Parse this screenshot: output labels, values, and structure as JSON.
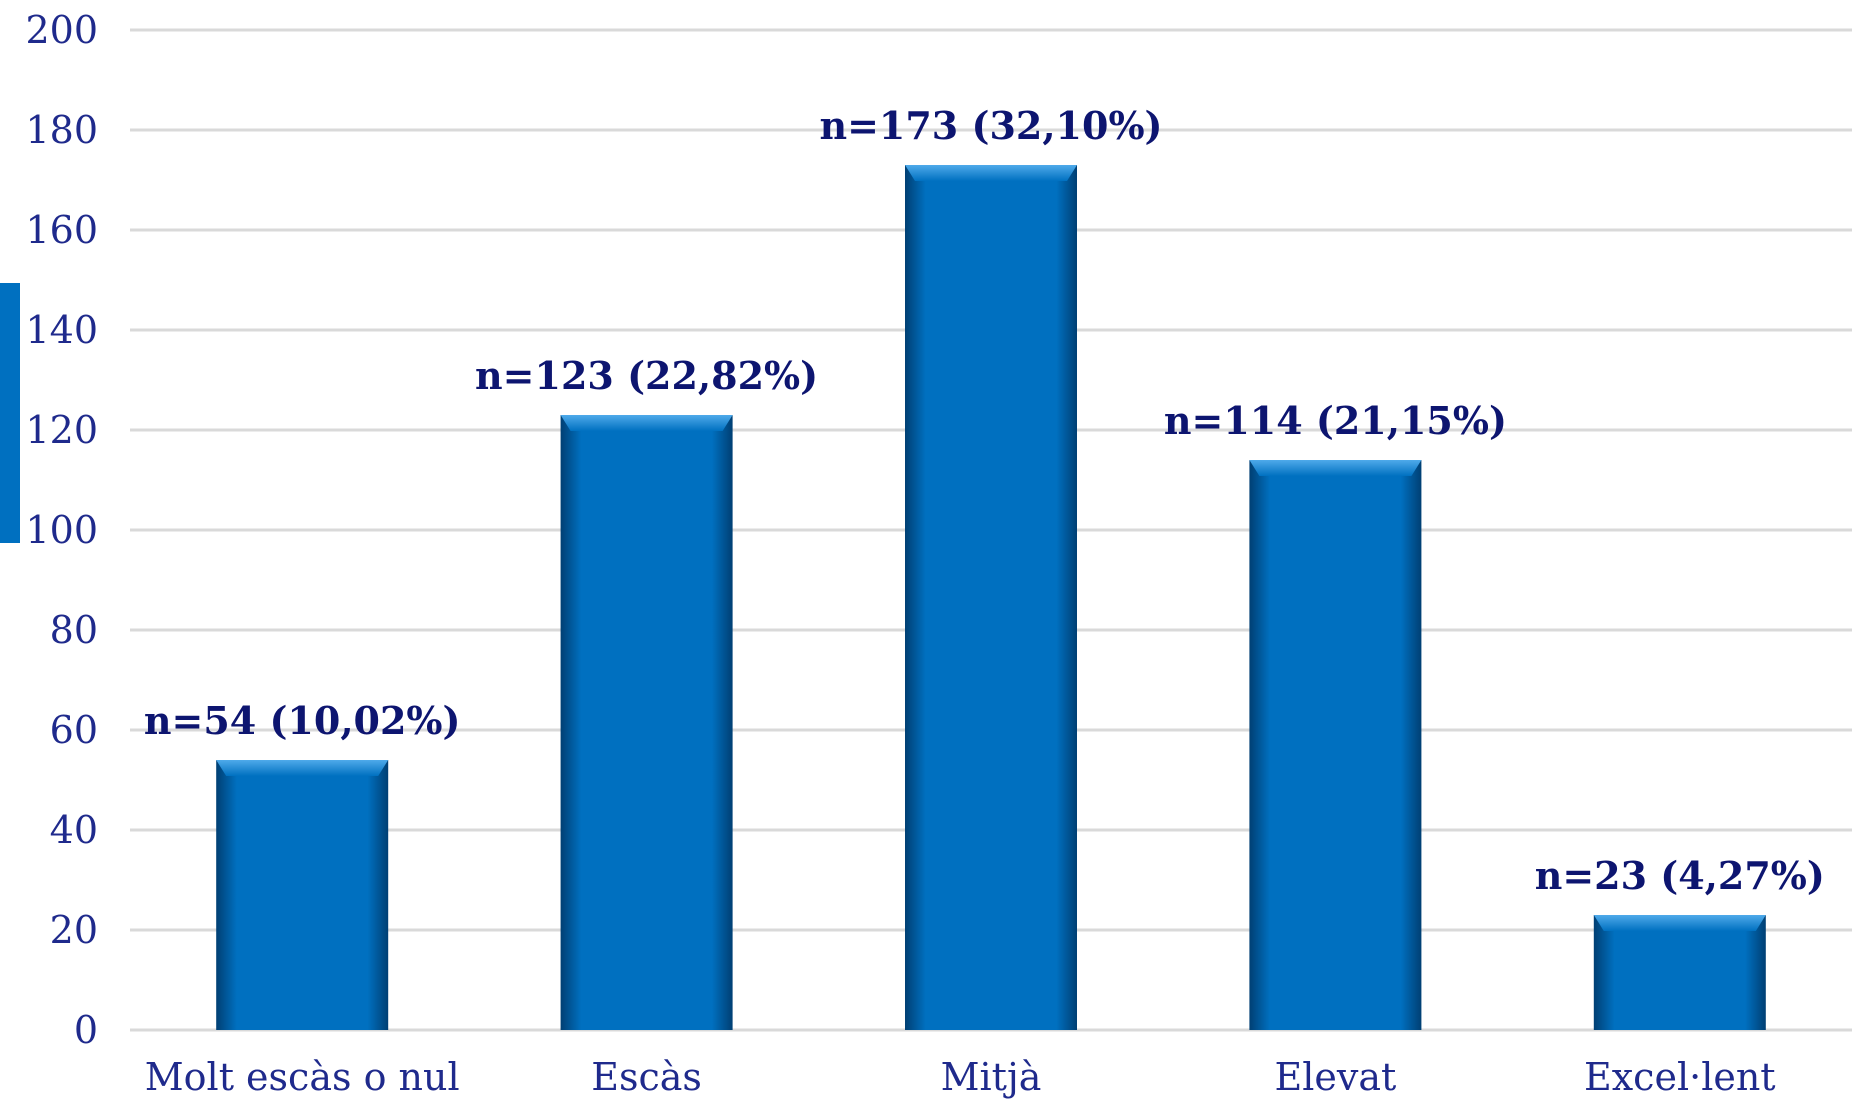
{
  "chart_data": {
    "type": "bar",
    "categories": [
      "Molt escàs o nul",
      "Escàs",
      "Mitjà",
      "Elevat",
      "Excel·lent"
    ],
    "values": [
      54,
      123,
      173,
      114,
      23
    ],
    "data_labels": [
      "n=54 (10,02%)",
      "n=123 (22,82%)",
      "n=173 (32,10%)",
      "n=114 (21,15%)",
      "n=23 (4,27%)"
    ],
    "y_ticks": [
      "0",
      "20",
      "40",
      "60",
      "80",
      "100",
      "120",
      "140",
      "160",
      "180",
      "200"
    ],
    "ylim": [
      0,
      200
    ],
    "title": "",
    "xlabel": "",
    "ylabel": "",
    "grid": true,
    "legend": "none",
    "colors": {
      "bar": "#0070C0",
      "bar_edge": "#003F73",
      "bar_highlight": "#3A9BE0",
      "grid": "#D9D9D9",
      "axis_text": "#1F2A8C",
      "data_label_text": "#0D1570",
      "side_accent": "#0070C0"
    }
  }
}
